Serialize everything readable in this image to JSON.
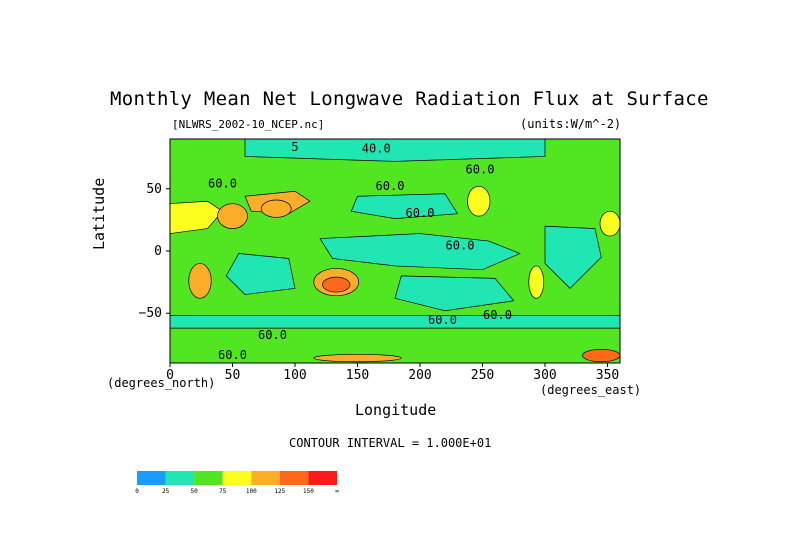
{
  "chart_data": {
    "type": "heatmap",
    "title": "Monthly Mean Net Longwave Radiation Flux at Surface",
    "file_label": "[NLWRS_2002-10_NCEP.nc]",
    "units_label": "(units:W/m^-2)",
    "xlabel": "Longitude",
    "ylabel": "Latitude",
    "x_unit_label": "(degrees_east)",
    "y_unit_label": "(degrees_north)",
    "xlim": [
      0,
      360
    ],
    "ylim": [
      -90,
      90
    ],
    "x_ticks": [
      0,
      50,
      100,
      150,
      200,
      250,
      300,
      350
    ],
    "x_tick_labels": [
      "0",
      "50",
      "100",
      "150",
      "200",
      "250",
      "300",
      "350"
    ],
    "y_ticks": [
      50,
      0,
      -50
    ],
    "y_tick_labels": [
      "50",
      "0",
      "−50"
    ],
    "contour_interval_text": "CONTOUR INTERVAL = 1.000E+01",
    "contour_labels": [
      {
        "text": "40.0",
        "lon": 165,
        "lat": 82
      },
      {
        "text": "60.0",
        "lon": 42,
        "lat": 54
      },
      {
        "text": "60.0",
        "lon": 176,
        "lat": 52
      },
      {
        "text": "60.0",
        "lon": 248,
        "lat": 65
      },
      {
        "text": "60.0",
        "lon": 232,
        "lat": 4
      },
      {
        "text": "60.0",
        "lon": 200,
        "lat": 30
      },
      {
        "text": "60.0",
        "lon": 218,
        "lat": -56
      },
      {
        "text": "60.0",
        "lon": 262,
        "lat": -52
      },
      {
        "text": "60.0",
        "lon": 82,
        "lat": -68
      },
      {
        "text": "60.0",
        "lon": 50,
        "lat": -84
      },
      {
        "text": "5",
        "lon": 100,
        "lat": 83
      }
    ],
    "colorbar": {
      "levels": [
        "0",
        "25",
        "50",
        "75",
        "100",
        "125",
        "150",
        "∞"
      ],
      "colors": [
        "#1a9cff",
        "#20e6b4",
        "#52e622",
        "#fbff1e",
        "#fdae28",
        "#ff6a1a",
        "#ff1a1a"
      ]
    },
    "regions": [
      {
        "name": "background",
        "value": 55,
        "shape": "rect",
        "lon": [
          0,
          360
        ],
        "lat": [
          -90,
          90
        ]
      },
      {
        "name": "tropical-pacific",
        "value": 40,
        "shape": "poly",
        "pts": [
          [
            120,
            10
          ],
          [
            200,
            14
          ],
          [
            255,
            8
          ],
          [
            280,
            -2
          ],
          [
            250,
            -15
          ],
          [
            180,
            -12
          ],
          [
            130,
            -6
          ]
        ]
      },
      {
        "name": "indian-ocean",
        "value": 40,
        "shape": "poly",
        "pts": [
          [
            55,
            -2
          ],
          [
            95,
            -6
          ],
          [
            100,
            -30
          ],
          [
            60,
            -35
          ],
          [
            45,
            -20
          ]
        ]
      },
      {
        "name": "south-pacific",
        "value": 40,
        "shape": "poly",
        "pts": [
          [
            185,
            -20
          ],
          [
            260,
            -22
          ],
          [
            275,
            -40
          ],
          [
            220,
            -48
          ],
          [
            180,
            -38
          ]
        ]
      },
      {
        "name": "north-pacific",
        "value": 40,
        "shape": "poly",
        "pts": [
          [
            150,
            44
          ],
          [
            220,
            46
          ],
          [
            230,
            30
          ],
          [
            180,
            26
          ],
          [
            145,
            32
          ]
        ]
      },
      {
        "name": "arctic",
        "value": 40,
        "shape": "poly",
        "pts": [
          [
            60,
            90
          ],
          [
            300,
            90
          ],
          [
            300,
            76
          ],
          [
            180,
            72
          ],
          [
            60,
            76
          ]
        ]
      },
      {
        "name": "atlantic",
        "value": 40,
        "shape": "poly",
        "pts": [
          [
            300,
            20
          ],
          [
            340,
            18
          ],
          [
            345,
            -5
          ],
          [
            320,
            -30
          ],
          [
            300,
            -10
          ]
        ]
      },
      {
        "name": "southern-ocean",
        "value": 40,
        "shape": "poly",
        "pts": [
          [
            0,
            -52
          ],
          [
            360,
            -52
          ],
          [
            360,
            -62
          ],
          [
            0,
            -62
          ]
        ]
      },
      {
        "name": "sahara-east",
        "value": 90,
        "shape": "poly",
        "pts": [
          [
            -2,
            38
          ],
          [
            30,
            40
          ],
          [
            42,
            32
          ],
          [
            30,
            18
          ],
          [
            0,
            14
          ]
        ]
      },
      {
        "name": "middle-east",
        "value": 105,
        "shape": "ellipse",
        "lon": 50,
        "lat": 28,
        "rlon": 12,
        "rlat": 10
      },
      {
        "name": "central-asia",
        "value": 100,
        "shape": "poly",
        "pts": [
          [
            60,
            44
          ],
          [
            100,
            48
          ],
          [
            112,
            40
          ],
          [
            95,
            30
          ],
          [
            65,
            32
          ]
        ]
      },
      {
        "name": "tibet",
        "value": 120,
        "shape": "ellipse",
        "lon": 85,
        "lat": 34,
        "rlon": 12,
        "rlat": 7
      },
      {
        "name": "southern-africa",
        "value": 100,
        "shape": "ellipse",
        "lon": 24,
        "lat": -24,
        "rlon": 9,
        "rlat": 14
      },
      {
        "name": "australia",
        "value": 110,
        "shape": "ellipse",
        "lon": 133,
        "lat": -25,
        "rlon": 18,
        "rlat": 11
      },
      {
        "name": "australia-core",
        "value": 130,
        "shape": "ellipse",
        "lon": 133,
        "lat": -27,
        "rlon": 11,
        "rlat": 6
      },
      {
        "name": "western-us",
        "value": 95,
        "shape": "ellipse",
        "lon": 247,
        "lat": 40,
        "rlon": 9,
        "rlat": 12
      },
      {
        "name": "sahara-west",
        "value": 95,
        "shape": "ellipse",
        "lon": 352,
        "lat": 22,
        "rlon": 8,
        "rlat": 10
      },
      {
        "name": "south-america",
        "value": 85,
        "shape": "ellipse",
        "lon": 293,
        "lat": -25,
        "rlon": 6,
        "rlat": 13
      },
      {
        "name": "antarctica",
        "value": 70,
        "shape": "rect",
        "lon": [
          0,
          360
        ],
        "lat": [
          -90,
          -72
        ]
      },
      {
        "name": "antarctica-hot1",
        "value": 130,
        "shape": "ellipse",
        "lon": 345,
        "lat": -84,
        "rlon": 15,
        "rlat": 5
      },
      {
        "name": "antarctica-hot2",
        "value": 110,
        "shape": "ellipse",
        "lon": 150,
        "lat": -86,
        "rlon": 35,
        "rlat": 3
      }
    ]
  }
}
